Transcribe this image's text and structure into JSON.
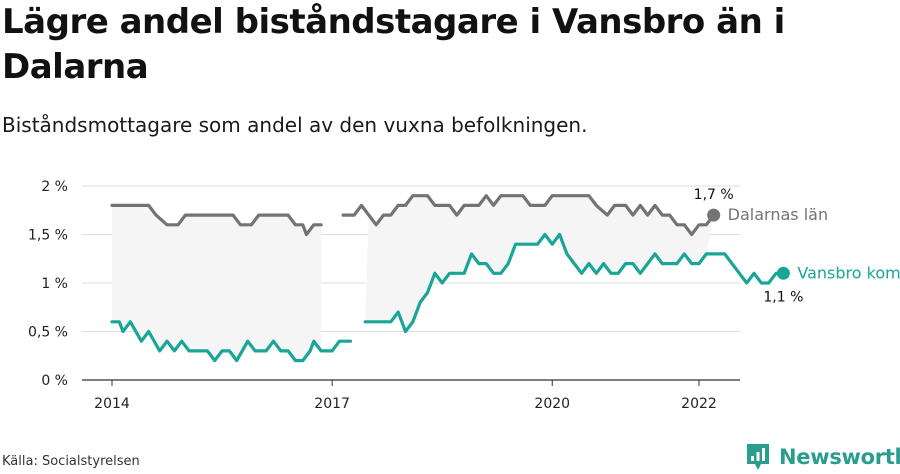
{
  "header": {
    "title": "Lägre andel biståndstagare i Vansbro än i Dalarna",
    "subtitle": "Biståndsmottagare som andel av den vuxna befolkningen."
  },
  "footer": {
    "source": "Källa: Socialstyrelsen",
    "brand": "Newsworthy"
  },
  "colors": {
    "dalarna": "#737373",
    "vansbro": "#19a597",
    "band": "#f5f5f5",
    "grid": "#dedede",
    "axis": "#333333"
  },
  "chart_data": {
    "type": "line",
    "title": "Lägre andel biståndstagare i Vansbro än i Dalarna",
    "subtitle": "Biståndsmottagare som andel av den vuxna befolkningen.",
    "ylim": [
      0,
      2
    ],
    "yticks": [
      0,
      0.5,
      1,
      1.5,
      2
    ],
    "ytick_labels": [
      "0 %",
      "0,5 %",
      "1 %",
      "1,5 %",
      "2 %"
    ],
    "xlim": [
      2014,
      2022.6
    ],
    "xticks": [
      2014,
      2017,
      2020,
      2022
    ],
    "xtick_labels": [
      "2014",
      "2017",
      "2020",
      "2022"
    ],
    "grid": true,
    "band_between_series": true,
    "series": [
      {
        "name": "Dalarnas län",
        "color": "#737373",
        "end_label": "1,7 %",
        "segments": [
          [
            [
              2014.0,
              1.8
            ],
            [
              2014.3,
              1.8
            ],
            [
              2014.5,
              1.8
            ],
            [
              2014.6,
              1.7
            ],
            [
              2014.75,
              1.6
            ],
            [
              2014.9,
              1.6
            ],
            [
              2015.0,
              1.7
            ],
            [
              2015.2,
              1.7
            ],
            [
              2015.5,
              1.7
            ],
            [
              2015.65,
              1.7
            ],
            [
              2015.75,
              1.6
            ],
            [
              2015.9,
              1.6
            ],
            [
              2016.0,
              1.7
            ],
            [
              2016.3,
              1.7
            ],
            [
              2016.4,
              1.7
            ],
            [
              2016.5,
              1.6
            ],
            [
              2016.6,
              1.6
            ],
            [
              2016.65,
              1.5
            ],
            [
              2016.75,
              1.6
            ],
            [
              2016.85,
              1.6
            ]
          ],
          [
            [
              2017.15,
              1.7
            ],
            [
              2017.3,
              1.7
            ],
            [
              2017.4,
              1.8
            ],
            [
              2017.5,
              1.7
            ],
            [
              2017.6,
              1.6
            ],
            [
              2017.7,
              1.7
            ],
            [
              2017.8,
              1.7
            ],
            [
              2017.9,
              1.8
            ],
            [
              2018.0,
              1.8
            ],
            [
              2018.1,
              1.9
            ],
            [
              2018.3,
              1.9
            ],
            [
              2018.4,
              1.8
            ],
            [
              2018.6,
              1.8
            ],
            [
              2018.7,
              1.7
            ],
            [
              2018.8,
              1.8
            ],
            [
              2019.0,
              1.8
            ],
            [
              2019.1,
              1.9
            ],
            [
              2019.2,
              1.8
            ],
            [
              2019.3,
              1.9
            ],
            [
              2019.6,
              1.9
            ],
            [
              2019.7,
              1.8
            ],
            [
              2019.9,
              1.8
            ],
            [
              2020.0,
              1.9
            ],
            [
              2020.5,
              1.9
            ],
            [
              2020.6,
              1.8
            ],
            [
              2020.75,
              1.7
            ],
            [
              2020.85,
              1.8
            ],
            [
              2021.0,
              1.8
            ],
            [
              2021.1,
              1.7
            ],
            [
              2021.2,
              1.8
            ],
            [
              2021.3,
              1.7
            ],
            [
              2021.4,
              1.8
            ],
            [
              2021.5,
              1.7
            ],
            [
              2021.6,
              1.7
            ],
            [
              2021.7,
              1.6
            ],
            [
              2021.8,
              1.6
            ],
            [
              2021.9,
              1.5
            ],
            [
              2022.0,
              1.6
            ],
            [
              2022.1,
              1.6
            ],
            [
              2022.2,
              1.7
            ]
          ]
        ]
      },
      {
        "name": "Vansbro kommun",
        "color": "#19a597",
        "end_label": "1,1 %",
        "segments": [
          [
            [
              2014.0,
              0.6
            ],
            [
              2014.1,
              0.6
            ],
            [
              2014.15,
              0.5
            ],
            [
              2014.25,
              0.6
            ],
            [
              2014.4,
              0.4
            ],
            [
              2014.5,
              0.5
            ],
            [
              2014.65,
              0.3
            ],
            [
              2014.75,
              0.4
            ],
            [
              2014.85,
              0.3
            ],
            [
              2014.95,
              0.4
            ],
            [
              2015.05,
              0.3
            ],
            [
              2015.3,
              0.3
            ],
            [
              2015.4,
              0.2
            ],
            [
              2015.5,
              0.3
            ],
            [
              2015.6,
              0.3
            ],
            [
              2015.7,
              0.2
            ],
            [
              2015.85,
              0.4
            ],
            [
              2015.95,
              0.3
            ],
            [
              2016.1,
              0.3
            ],
            [
              2016.2,
              0.4
            ],
            [
              2016.3,
              0.3
            ],
            [
              2016.4,
              0.3
            ],
            [
              2016.5,
              0.2
            ],
            [
              2016.6,
              0.2
            ],
            [
              2016.7,
              0.3
            ],
            [
              2016.75,
              0.4
            ],
            [
              2016.85,
              0.3
            ],
            [
              2017.0,
              0.3
            ],
            [
              2017.1,
              0.4
            ],
            [
              2017.25,
              0.4
            ]
          ],
          [
            [
              2017.45,
              0.6
            ],
            [
              2017.8,
              0.6
            ],
            [
              2017.9,
              0.7
            ],
            [
              2018.0,
              0.5
            ],
            [
              2018.1,
              0.6
            ],
            [
              2018.2,
              0.8
            ],
            [
              2018.3,
              0.9
            ],
            [
              2018.4,
              1.1
            ],
            [
              2018.5,
              1.0
            ],
            [
              2018.6,
              1.1
            ],
            [
              2018.8,
              1.1
            ],
            [
              2018.9,
              1.3
            ],
            [
              2019.0,
              1.2
            ],
            [
              2019.1,
              1.2
            ],
            [
              2019.2,
              1.1
            ],
            [
              2019.3,
              1.1
            ],
            [
              2019.4,
              1.2
            ],
            [
              2019.5,
              1.4
            ],
            [
              2019.8,
              1.4
            ],
            [
              2019.9,
              1.5
            ],
            [
              2020.0,
              1.4
            ],
            [
              2020.1,
              1.5
            ],
            [
              2020.2,
              1.3
            ],
            [
              2020.3,
              1.2
            ],
            [
              2020.4,
              1.1
            ],
            [
              2020.5,
              1.2
            ],
            [
              2020.6,
              1.1
            ],
            [
              2020.7,
              1.2
            ],
            [
              2020.8,
              1.1
            ],
            [
              2020.9,
              1.1
            ],
            [
              2021.0,
              1.2
            ],
            [
              2021.1,
              1.2
            ],
            [
              2021.2,
              1.1
            ],
            [
              2021.3,
              1.2
            ],
            [
              2021.4,
              1.3
            ],
            [
              2021.5,
              1.2
            ],
            [
              2021.7,
              1.2
            ],
            [
              2021.8,
              1.3
            ],
            [
              2021.9,
              1.2
            ],
            [
              2022.0,
              1.2
            ],
            [
              2022.1,
              1.3
            ],
            [
              2022.35,
              1.3
            ],
            [
              2022.45,
              1.2
            ],
            [
              2022.55,
              1.1
            ],
            [
              2022.65,
              1.0
            ],
            [
              2022.75,
              1.1
            ],
            [
              2022.85,
              1.0
            ],
            [
              2022.95,
              1.0
            ],
            [
              2023.05,
              1.1
            ],
            [
              2023.15,
              1.1
            ]
          ]
        ]
      }
    ]
  }
}
